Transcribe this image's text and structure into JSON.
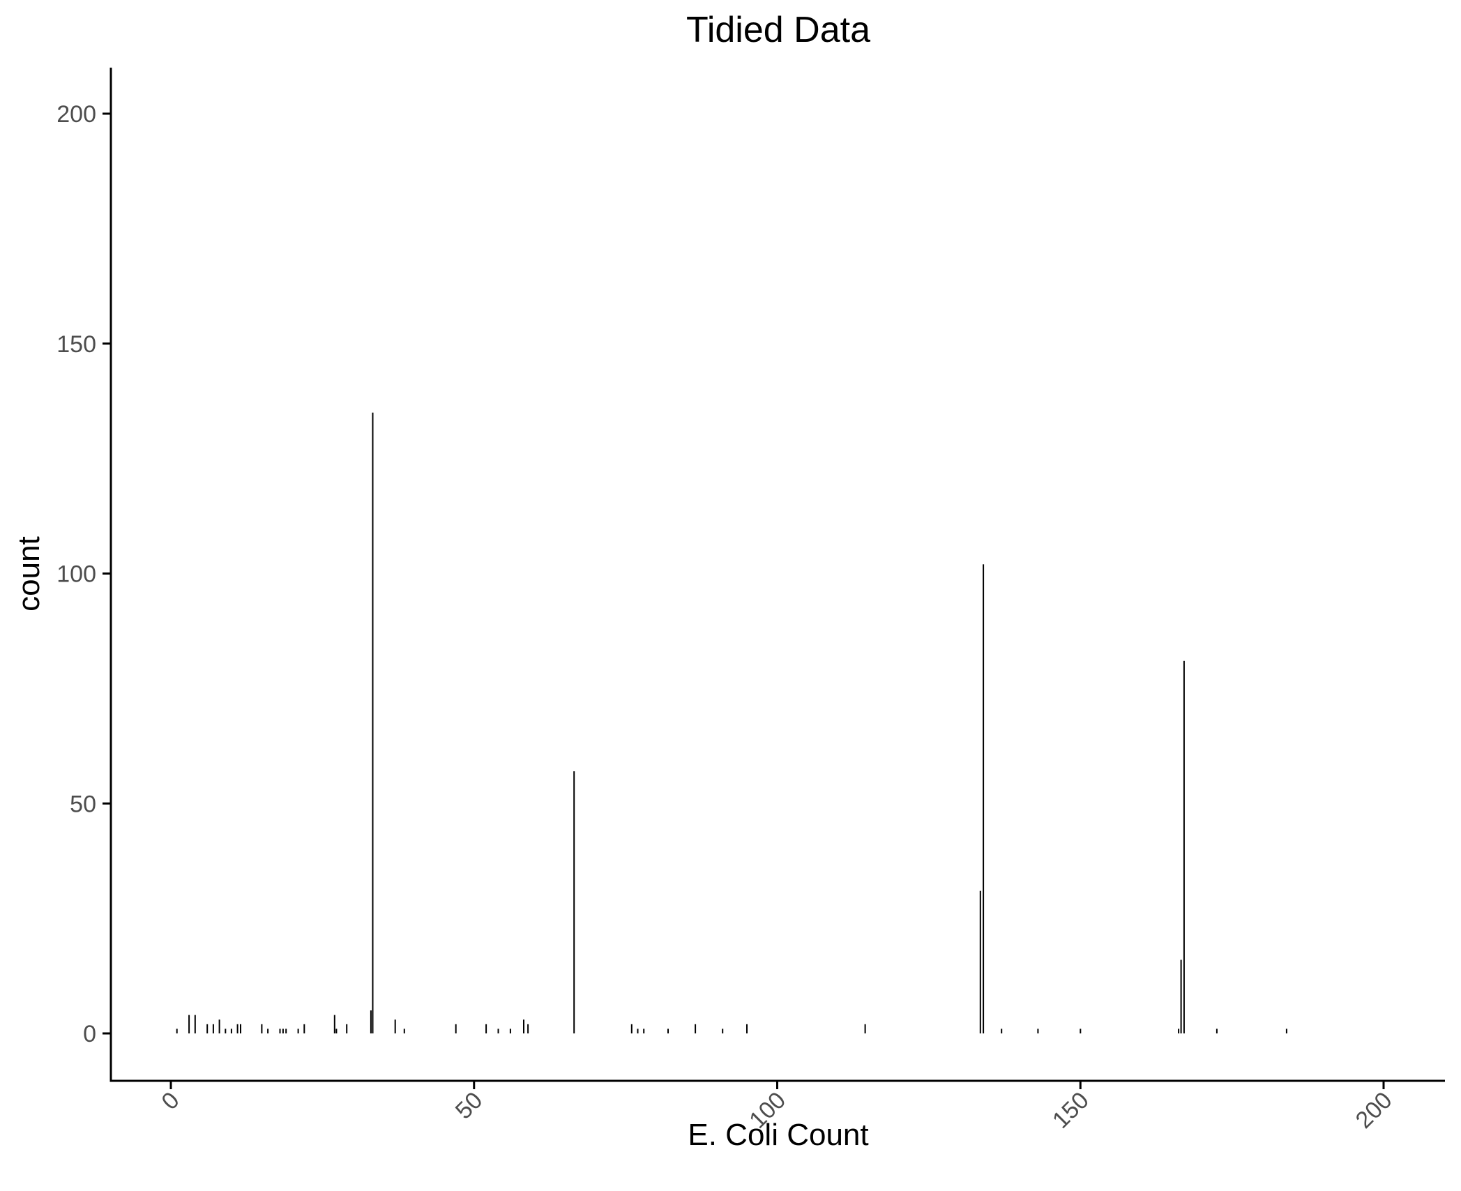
{
  "chart_data": {
    "type": "bar",
    "title": "Tidied Data",
    "xlabel": "E. Coli Count",
    "ylabel": "count",
    "xlim": [
      -10,
      210
    ],
    "ylim": [
      -10,
      210
    ],
    "x_ticks": [
      0,
      50,
      100,
      150,
      200
    ],
    "x_tick_labels": [
      "0",
      "50",
      "100",
      "150",
      "200"
    ],
    "y_ticks": [
      0,
      50,
      100,
      150,
      200
    ],
    "y_tick_labels": [
      "0",
      "50",
      "100",
      "150",
      "200"
    ],
    "x_tick_rotation_deg": -45,
    "grid": false,
    "legend": "none",
    "bar_color": "#000000",
    "x": [
      1,
      3,
      4,
      6,
      7,
      8,
      9,
      10,
      11,
      11.5,
      15,
      16,
      18,
      18.5,
      19,
      21,
      22,
      27,
      27.3,
      29,
      33,
      33.3,
      37,
      38.5,
      47,
      52,
      54,
      56,
      58.2,
      58.9,
      66.5,
      76,
      77,
      78,
      82,
      86.5,
      91,
      95,
      114.5,
      133.5,
      134,
      137,
      143,
      150,
      166.2,
      166.6,
      167.1,
      172.5,
      184
    ],
    "values": [
      1,
      4,
      4,
      2,
      2,
      3,
      1,
      1,
      2,
      2,
      2,
      1,
      1,
      1,
      1,
      1,
      2,
      4,
      1,
      2,
      5,
      135,
      3,
      1,
      2,
      2,
      1,
      1,
      3,
      2,
      57,
      2,
      1,
      1,
      1,
      2,
      1,
      2,
      2,
      31,
      102,
      1,
      1,
      1,
      1,
      16,
      81,
      1,
      1
    ]
  }
}
